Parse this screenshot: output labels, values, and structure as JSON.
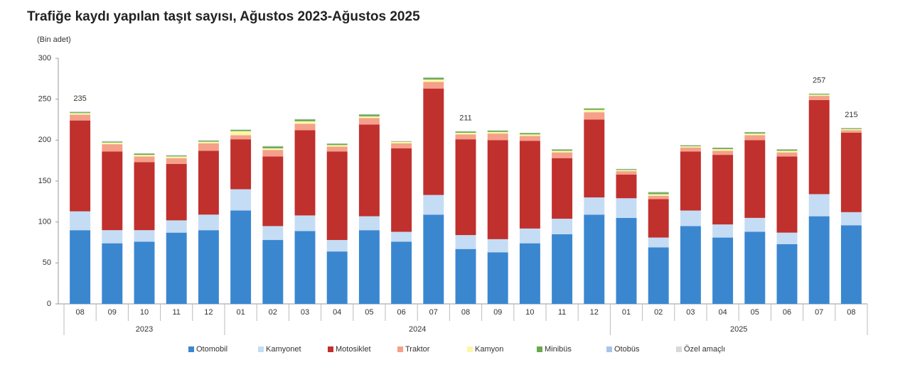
{
  "chart_data": {
    "type": "stacked_bar",
    "title": "Trafiğe kaydı yapılan taşıt sayısı, Ağustos 2023-Ağustos 2025",
    "y_unit_label": "(Bin adet)",
    "categories": [
      "08",
      "09",
      "10",
      "11",
      "12",
      "01",
      "02",
      "03",
      "04",
      "05",
      "06",
      "07",
      "08",
      "09",
      "10",
      "11",
      "12",
      "01",
      "02",
      "03",
      "04",
      "05",
      "06",
      "07",
      "08"
    ],
    "x_groups": [
      {
        "label": "2023",
        "count": 5
      },
      {
        "label": "2024",
        "count": 12
      },
      {
        "label": "2025",
        "count": 8
      }
    ],
    "series": [
      {
        "name": "Otomobil",
        "color": "#3a87d0",
        "values": [
          90,
          74,
          76,
          87,
          90,
          114,
          78,
          89,
          64,
          90,
          76,
          109,
          67,
          63,
          74,
          85,
          109,
          105,
          69,
          95,
          81,
          88,
          73,
          107,
          96
        ]
      },
      {
        "name": "Kamyonet",
        "color": "#c5dcf5",
        "values": [
          23,
          16,
          14,
          15,
          19,
          26,
          17,
          19,
          14,
          17,
          12,
          24,
          17,
          16,
          18,
          19,
          21,
          24,
          12,
          19,
          16,
          17,
          14,
          27,
          16
        ]
      },
      {
        "name": "Motosiklet",
        "color": "#c0302d",
        "values": [
          111,
          96,
          83,
          69,
          78,
          61,
          85,
          104,
          108,
          112,
          102,
          130,
          117,
          121,
          107,
          74,
          95,
          29,
          47,
          72,
          85,
          95,
          93,
          115,
          97
        ]
      },
      {
        "name": "Traktor",
        "color": "#f4a08a",
        "values": [
          7,
          9,
          7,
          7,
          9,
          5,
          8,
          8,
          6,
          8,
          6,
          8,
          6,
          8,
          6,
          7,
          9,
          4,
          4,
          5,
          5,
          6,
          5,
          5,
          3
        ]
      },
      {
        "name": "Kamyon",
        "color": "#fbf7a6",
        "values": [
          2,
          2,
          2,
          2,
          2,
          5,
          2,
          3,
          2,
          2,
          2,
          3,
          2,
          2,
          2,
          2,
          3,
          1.5,
          2,
          1.5,
          2,
          2,
          2,
          1.5,
          1.5
        ]
      },
      {
        "name": "Minibüs",
        "color": "#6aa84f",
        "values": [
          1,
          1,
          1.5,
          1,
          1,
          1.5,
          2,
          2,
          1.5,
          2,
          0.5,
          2,
          1.5,
          1.5,
          1.5,
          1.5,
          1.5,
          1,
          2,
          1,
          1.5,
          1.5,
          1.5,
          1,
          1
        ]
      },
      {
        "name": "Otobüs",
        "color": "#a9c4eb",
        "values": [
          0.5,
          0.5,
          0.3,
          0.5,
          0.5,
          0.3,
          0.5,
          0.5,
          0.3,
          0.5,
          0.3,
          0.5,
          0.3,
          0.3,
          0.3,
          0.3,
          0.3,
          0.3,
          0.5,
          0.3,
          0.3,
          0.3,
          0.3,
          0.3,
          0.3
        ]
      },
      {
        "name": "Özel amaçlı",
        "color": "#d9d9d9",
        "values": [
          0.5,
          0.5,
          0.2,
          0.5,
          0.5,
          0.2,
          0.5,
          0.5,
          0.2,
          0.5,
          0.2,
          0.5,
          0.2,
          0.2,
          0.2,
          0.2,
          0.2,
          0.2,
          0.5,
          0.2,
          0.2,
          0.2,
          0.2,
          0.2,
          0.2
        ]
      }
    ],
    "total_labels": [
      235,
      null,
      null,
      null,
      null,
      null,
      null,
      null,
      null,
      null,
      null,
      null,
      211,
      null,
      null,
      null,
      null,
      null,
      null,
      null,
      null,
      null,
      null,
      257,
      215
    ],
    "ylim": [
      0,
      300
    ],
    "yticks": [
      0,
      50,
      100,
      150,
      200,
      250,
      300
    ],
    "grid": false,
    "legend": "bottom"
  }
}
